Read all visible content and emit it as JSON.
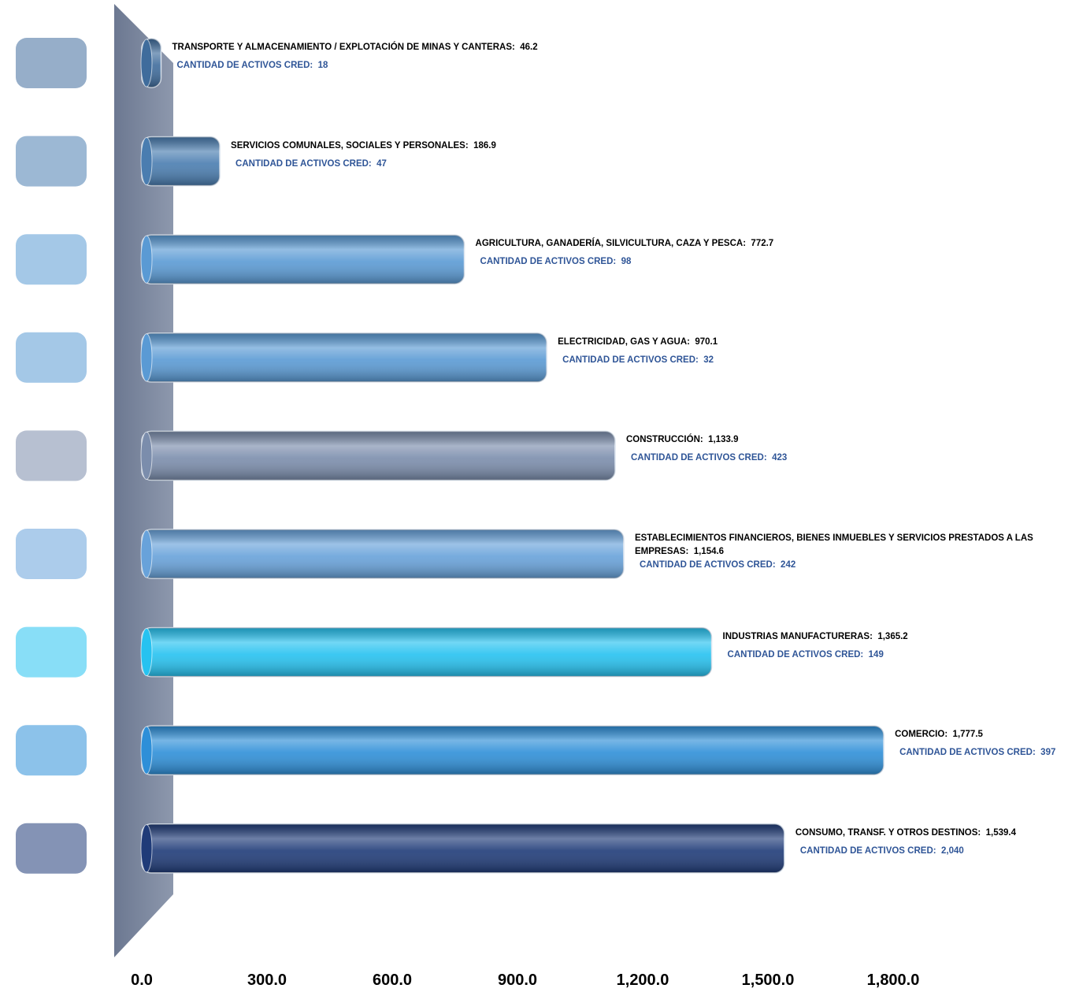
{
  "chart_data": {
    "type": "bar",
    "orientation": "horizontal",
    "categories": [
      "TRANSPORTE Y ALMACENAMIENTO / EXPLOTACIÓN DE MINAS Y CANTERAS:",
      "SERVICIOS COMUNALES, SOCIALES Y PERSONALES:",
      "AGRICULTURA, GANADERÍA, SILVICULTURA, CAZA Y PESCA:",
      "ELECTRICIDAD, GAS Y AGUA:",
      "CONSTRUCCIÓN:",
      "ESTABLECIMIENTOS FINANCIEROS, BIENES INMUEBLES Y SERVICIOS PRESTADOS A LAS EMPRESAS:",
      "INDUSTRIAS MANUFACTURERAS:",
      "COMERCIO:",
      "CONSUMO, TRANSF. Y OTROS DESTINOS:"
    ],
    "values": [
      46.2,
      186.9,
      772.7,
      970.1,
      1133.9,
      1154.6,
      1365.2,
      1777.5,
      1539.4
    ],
    "value_labels": [
      "46.2",
      "186.9",
      "772.7",
      "970.1",
      "1,133.9",
      "1,154.6",
      "1,365.2",
      "1,777.5",
      "1,539.4"
    ],
    "colors": [
      "#3f6c9c",
      "#4a7db0",
      "#5a9ad4",
      "#5a9ad4",
      "#7b8dac",
      "#68a2da",
      "#26c2f0",
      "#2e8fd8",
      "#1f3b78"
    ],
    "count_label": "CANTIDAD DE ACTIVOS CRED:",
    "counts": [
      18,
      47,
      98,
      32,
      423,
      242,
      149,
      397,
      {
        "value": 2040,
        "label": "2,040"
      }
    ],
    "xlim": [
      0,
      1800
    ],
    "xticks": [
      {
        "value": 0,
        "label": "0.0"
      },
      {
        "value": 300,
        "label": "300.0"
      },
      {
        "value": 600,
        "label": "600.0"
      },
      {
        "value": 900,
        "label": "900.0"
      },
      {
        "value": 1200,
        "label": "1,200.0"
      },
      {
        "value": 1500,
        "label": "1,500.0"
      },
      {
        "value": 1800,
        "label": "1,800.0"
      }
    ]
  }
}
